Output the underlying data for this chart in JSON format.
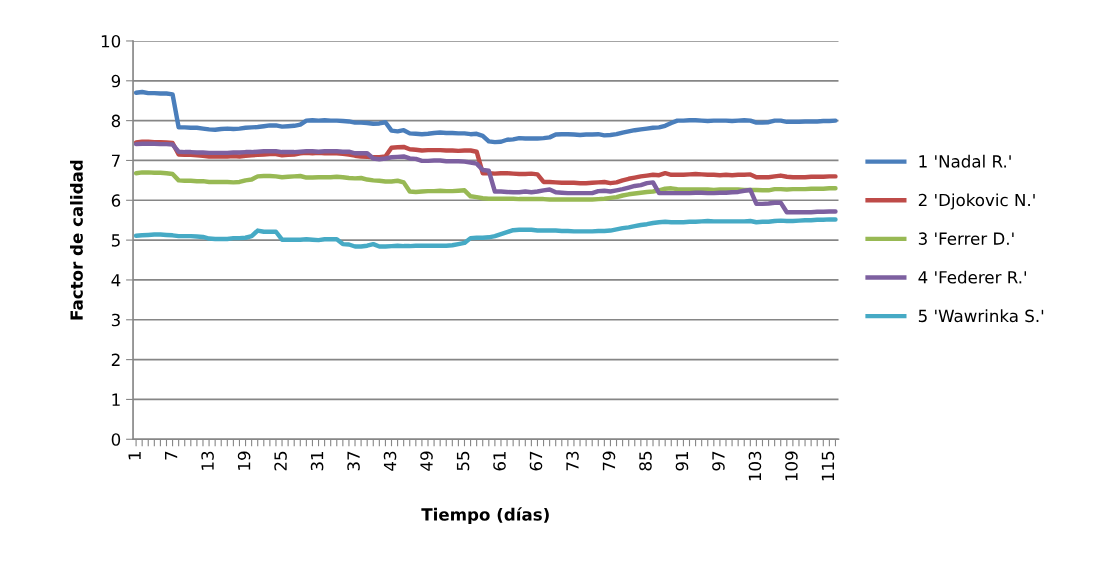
{
  "chart_data": {
    "type": "line",
    "xlabel": "Tiempo (días)",
    "ylabel": "Factor de calidad",
    "categories": [
      "1",
      null,
      null,
      null,
      null,
      null,
      "7",
      null,
      null,
      null,
      null,
      null,
      "13",
      null,
      null,
      null,
      null,
      null,
      "19",
      null,
      null,
      null,
      null,
      null,
      "25",
      null,
      null,
      null,
      null,
      null,
      "31",
      null,
      null,
      null,
      null,
      null,
      "37",
      null,
      null,
      null,
      null,
      null,
      "43",
      null,
      null,
      null,
      null,
      null,
      "49",
      null,
      null,
      null,
      null,
      null,
      "55",
      null,
      null,
      null,
      null,
      null,
      "61",
      null,
      null,
      null,
      null,
      null,
      "67",
      null,
      null,
      null,
      null,
      null,
      "73",
      null,
      null,
      null,
      null,
      null,
      "79",
      null,
      null,
      null,
      null,
      null,
      "85",
      null,
      null,
      null,
      null,
      null,
      "91",
      null,
      null,
      null,
      null,
      null,
      "97",
      null,
      null,
      null,
      null,
      null,
      "103",
      null,
      null,
      null,
      null,
      null,
      "109",
      null,
      null,
      null,
      null,
      null,
      "115",
      null
    ],
    "ylim": [
      0,
      10
    ],
    "yticks": [
      0,
      1,
      2,
      3,
      4,
      5,
      6,
      7,
      8,
      9,
      10
    ],
    "grid": "y",
    "legend": "right",
    "marker": "none",
    "line_style": "solid",
    "series": [
      {
        "name": "1 'Nadal R.'",
        "color": "#4a7ebb",
        "values": [
          8.7,
          8.72,
          8.69,
          8.69,
          8.68,
          8.68,
          8.66,
          7.83,
          7.83,
          7.82,
          7.82,
          7.8,
          7.78,
          7.77,
          7.79,
          7.8,
          7.79,
          7.8,
          7.82,
          7.83,
          7.84,
          7.86,
          7.88,
          7.88,
          7.85,
          7.86,
          7.87,
          7.9,
          8.0,
          8.01,
          8.0,
          8.01,
          8.0,
          8.0,
          7.99,
          7.98,
          7.95,
          7.95,
          7.94,
          7.92,
          7.93,
          7.96,
          7.75,
          7.73,
          7.76,
          7.68,
          7.67,
          7.66,
          7.67,
          7.69,
          7.7,
          7.69,
          7.69,
          7.68,
          7.68,
          7.66,
          7.67,
          7.62,
          7.48,
          7.46,
          7.47,
          7.52,
          7.53,
          7.56,
          7.55,
          7.55,
          7.55,
          7.56,
          7.58,
          7.65,
          7.66,
          7.66,
          7.65,
          7.64,
          7.65,
          7.65,
          7.66,
          7.63,
          7.64,
          7.66,
          7.7,
          7.73,
          7.76,
          7.78,
          7.8,
          7.82,
          7.83,
          7.87,
          7.94,
          8.0,
          8.0,
          8.01,
          8.01,
          8.0,
          7.99,
          8.0,
          8.0,
          8.0,
          7.99,
          8.0,
          8.01,
          8.0,
          7.95,
          7.95,
          7.96,
          8.0,
          8.0,
          7.97,
          7.97,
          7.97,
          7.98,
          7.98,
          7.98,
          7.99,
          7.99,
          8.0
        ]
      },
      {
        "name": "2 'Djokovic N.'",
        "color": "#be4b48",
        "values": [
          7.45,
          7.47,
          7.47,
          7.46,
          7.46,
          7.45,
          7.44,
          7.15,
          7.14,
          7.14,
          7.13,
          7.12,
          7.1,
          7.1,
          7.1,
          7.1,
          7.11,
          7.1,
          7.12,
          7.13,
          7.14,
          7.15,
          7.16,
          7.16,
          7.13,
          7.14,
          7.15,
          7.18,
          7.19,
          7.18,
          7.19,
          7.18,
          7.18,
          7.18,
          7.17,
          7.15,
          7.12,
          7.1,
          7.09,
          7.08,
          7.08,
          7.1,
          7.32,
          7.33,
          7.34,
          7.28,
          7.27,
          7.25,
          7.26,
          7.26,
          7.26,
          7.25,
          7.25,
          7.24,
          7.25,
          7.25,
          7.22,
          6.68,
          6.68,
          6.67,
          6.68,
          6.68,
          6.67,
          6.66,
          6.66,
          6.67,
          6.65,
          6.46,
          6.46,
          6.45,
          6.44,
          6.44,
          6.44,
          6.43,
          6.43,
          6.44,
          6.45,
          6.46,
          6.43,
          6.45,
          6.5,
          6.54,
          6.57,
          6.6,
          6.62,
          6.64,
          6.63,
          6.68,
          6.64,
          6.64,
          6.64,
          6.65,
          6.66,
          6.65,
          6.64,
          6.64,
          6.63,
          6.64,
          6.63,
          6.64,
          6.64,
          6.65,
          6.58,
          6.58,
          6.58,
          6.6,
          6.62,
          6.59,
          6.58,
          6.58,
          6.58,
          6.59,
          6.59,
          6.59,
          6.6,
          6.6
        ]
      },
      {
        "name": "3 'Ferrer D.'",
        "color": "#98b954",
        "values": [
          6.68,
          6.7,
          6.7,
          6.69,
          6.69,
          6.68,
          6.66,
          6.5,
          6.49,
          6.49,
          6.48,
          6.48,
          6.46,
          6.46,
          6.46,
          6.46,
          6.45,
          6.46,
          6.5,
          6.52,
          6.6,
          6.61,
          6.61,
          6.6,
          6.58,
          6.59,
          6.6,
          6.61,
          6.57,
          6.57,
          6.58,
          6.58,
          6.58,
          6.59,
          6.58,
          6.56,
          6.55,
          6.56,
          6.52,
          6.5,
          6.49,
          6.47,
          6.47,
          6.49,
          6.45,
          6.22,
          6.21,
          6.22,
          6.23,
          6.23,
          6.24,
          6.23,
          6.23,
          6.24,
          6.25,
          6.1,
          6.08,
          6.05,
          6.04,
          6.04,
          6.04,
          6.04,
          6.04,
          6.03,
          6.03,
          6.03,
          6.03,
          6.03,
          6.02,
          6.02,
          6.02,
          6.02,
          6.02,
          6.02,
          6.02,
          6.02,
          6.03,
          6.04,
          6.06,
          6.08,
          6.12,
          6.15,
          6.17,
          6.19,
          6.21,
          6.22,
          6.25,
          6.29,
          6.3,
          6.28,
          6.27,
          6.27,
          6.27,
          6.27,
          6.27,
          6.26,
          6.27,
          6.27,
          6.27,
          6.27,
          6.26,
          6.26,
          6.26,
          6.25,
          6.25,
          6.28,
          6.28,
          6.27,
          6.28,
          6.28,
          6.28,
          6.29,
          6.29,
          6.29,
          6.3,
          6.3
        ]
      },
      {
        "name": "4 'Federer R.'",
        "color": "#7d60a0",
        "values": [
          7.41,
          7.42,
          7.42,
          7.42,
          7.41,
          7.41,
          7.4,
          7.22,
          7.21,
          7.21,
          7.2,
          7.2,
          7.19,
          7.19,
          7.19,
          7.19,
          7.2,
          7.2,
          7.21,
          7.21,
          7.22,
          7.23,
          7.23,
          7.23,
          7.21,
          7.21,
          7.21,
          7.22,
          7.23,
          7.23,
          7.22,
          7.23,
          7.23,
          7.23,
          7.22,
          7.22,
          7.18,
          7.18,
          7.18,
          7.05,
          7.03,
          7.05,
          7.08,
          7.09,
          7.1,
          7.05,
          7.04,
          6.99,
          6.99,
          7.0,
          7.0,
          6.98,
          6.98,
          6.98,
          6.97,
          6.95,
          6.92,
          6.76,
          6.74,
          6.22,
          6.22,
          6.21,
          6.2,
          6.2,
          6.22,
          6.2,
          6.22,
          6.25,
          6.27,
          6.2,
          6.19,
          6.18,
          6.18,
          6.18,
          6.18,
          6.18,
          6.23,
          6.24,
          6.22,
          6.25,
          6.28,
          6.32,
          6.36,
          6.38,
          6.43,
          6.45,
          6.18,
          6.18,
          6.18,
          6.18,
          6.18,
          6.18,
          6.19,
          6.19,
          6.18,
          6.18,
          6.19,
          6.19,
          6.2,
          6.21,
          6.24,
          6.26,
          5.91,
          5.91,
          5.92,
          5.94,
          5.94,
          5.7,
          5.7,
          5.7,
          5.7,
          5.7,
          5.71,
          5.71,
          5.72,
          5.72
        ]
      },
      {
        "name": "5 'Wawrinka S.'",
        "color": "#46aac5",
        "values": [
          5.11,
          5.12,
          5.13,
          5.14,
          5.14,
          5.13,
          5.12,
          5.1,
          5.1,
          5.1,
          5.09,
          5.08,
          5.04,
          5.03,
          5.03,
          5.03,
          5.05,
          5.05,
          5.06,
          5.1,
          5.24,
          5.21,
          5.21,
          5.21,
          5.01,
          5.01,
          5.01,
          5.01,
          5.02,
          5.01,
          5.0,
          5.02,
          5.02,
          5.02,
          4.9,
          4.89,
          4.84,
          4.84,
          4.86,
          4.9,
          4.84,
          4.84,
          4.85,
          4.86,
          4.85,
          4.85,
          4.86,
          4.86,
          4.86,
          4.86,
          4.86,
          4.86,
          4.87,
          4.9,
          4.93,
          5.05,
          5.06,
          5.06,
          5.07,
          5.1,
          5.15,
          5.2,
          5.25,
          5.26,
          5.26,
          5.26,
          5.24,
          5.24,
          5.24,
          5.24,
          5.23,
          5.23,
          5.22,
          5.22,
          5.22,
          5.22,
          5.23,
          5.23,
          5.24,
          5.27,
          5.3,
          5.32,
          5.35,
          5.38,
          5.4,
          5.43,
          5.45,
          5.46,
          5.45,
          5.45,
          5.45,
          5.46,
          5.46,
          5.47,
          5.48,
          5.47,
          5.47,
          5.47,
          5.47,
          5.47,
          5.47,
          5.48,
          5.45,
          5.46,
          5.46,
          5.48,
          5.49,
          5.48,
          5.48,
          5.49,
          5.5,
          5.5,
          5.51,
          5.51,
          5.52,
          5.52
        ]
      }
    ]
  }
}
